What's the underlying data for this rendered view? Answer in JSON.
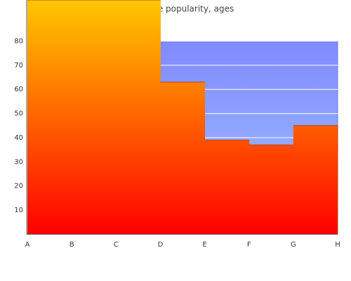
{
  "chart_data": {
    "type": "step-area",
    "title": "Butenafine popularity, ages",
    "categories": [
      "A",
      "B",
      "C",
      "D",
      "E",
      "F",
      "G",
      "H"
    ],
    "series": [
      {
        "values": [
          null,
          null,
          null,
          80,
          80,
          80,
          80,
          80
        ],
        "color": "#9fc6ff",
        "gradient_top": "#7b7cff"
      },
      {
        "values": [
          97,
          97,
          97,
          63,
          39,
          37,
          45,
          45
        ],
        "color": "#ff0000",
        "gradient_top": "#ffc800"
      }
    ],
    "ylim": [
      0,
      97
    ],
    "yticks": [
      10,
      20,
      30,
      40,
      50,
      60,
      70,
      80
    ],
    "grid": true
  }
}
